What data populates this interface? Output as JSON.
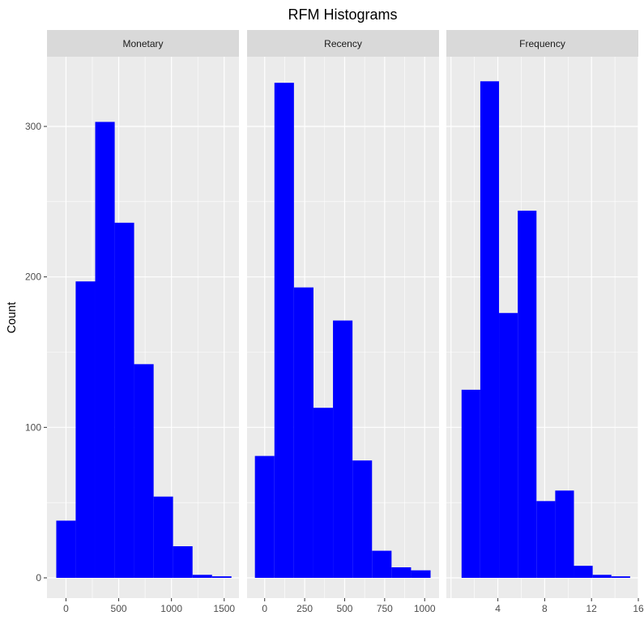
{
  "chart_data": {
    "type": "histogram-facets",
    "title": "RFM Histograms",
    "ylabel": "Count",
    "xlabel": "",
    "ylim": [
      -15,
      345
    ],
    "y_ticks": [
      0,
      100,
      200,
      300
    ],
    "bar_color": "#0000FF",
    "panel_bg": "#EBEBEB",
    "strip_bg": "#D9D9D9",
    "grid_color": "#FFFFFF",
    "panels": [
      {
        "name": "Monetary",
        "x_ticks": [
          0,
          500,
          1000,
          1500
        ],
        "xlim": [
          -180,
          1640
        ],
        "bin_edges": [
          -92,
          92,
          277,
          462,
          646,
          831,
          1015,
          1200,
          1385,
          1569
        ],
        "values": [
          38,
          197,
          303,
          236,
          142,
          54,
          21,
          2,
          1
        ]
      },
      {
        "name": "Recency",
        "x_ticks": [
          0,
          250,
          500,
          750,
          1000
        ],
        "xlim": [
          -110,
          1090
        ],
        "bin_edges": [
          -61,
          61,
          183,
          305,
          427,
          549,
          671,
          793,
          915,
          1037
        ],
        "values": [
          81,
          329,
          193,
          113,
          171,
          78,
          18,
          7,
          5
        ]
      },
      {
        "name": "Frequency",
        "x_ticks": [
          4,
          8,
          12,
          16
        ],
        "xlim": [
          -0.4,
          16.0
        ],
        "bin_edges": [
          0.9,
          2.5,
          4.1,
          5.7,
          7.3,
          8.9,
          10.5,
          12.1,
          13.7,
          15.3
        ],
        "values": [
          125,
          330,
          176,
          244,
          51,
          58,
          8,
          2,
          1
        ]
      }
    ]
  }
}
